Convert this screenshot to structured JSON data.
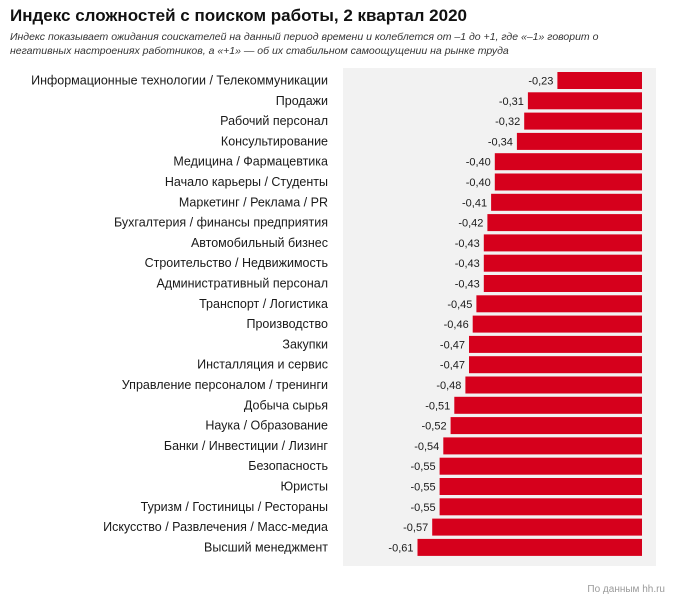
{
  "header": {
    "title": "Индекс сложностей с поиском работы, 2 квартал 2020",
    "subtitle": "Индекс показывает ожидания соискателей на данный период времени и колеблется от –1 до +1, где «–1» говорит о негативных настроениях работников, а «+1» — об их стабильном самоощущении на рынке труда"
  },
  "footer": {
    "source": "По данным hh.ru"
  },
  "colors": {
    "bar": "#d6001c",
    "panel": "#f2f2f2",
    "text": "#1a1a1a"
  },
  "chart_data": {
    "type": "bar",
    "orientation": "horizontal",
    "categories": [
      "Информационные технологии / Телекоммуникации",
      "Продажи",
      "Рабочий персонал",
      "Консультирование",
      "Медицина / Фармацевтика",
      "Начало карьеры / Студенты",
      "Маркетинг / Реклама / PR",
      "Бухгалтерия / финансы предприятия",
      "Автомобильный бизнес",
      "Строительство / Недвижимость",
      "Административный персонал",
      "Транспорт / Логистика",
      "Производство",
      "Закупки",
      "Инсталляция и сервис",
      "Управление персоналом / тренинги",
      "Добыча сырья",
      "Наука / Образование",
      "Банки / Инвестиции / Лизинг",
      "Безопасность",
      "Юристы",
      "Туризм / Гостиницы / Рестораны",
      "Искусство / Развлечения / Масс-медиа",
      "Высший менеджмент"
    ],
    "values": [
      -0.23,
      -0.31,
      -0.32,
      -0.34,
      -0.4,
      -0.4,
      -0.41,
      -0.42,
      -0.43,
      -0.43,
      -0.43,
      -0.45,
      -0.46,
      -0.47,
      -0.47,
      -0.48,
      -0.51,
      -0.52,
      -0.54,
      -0.55,
      -0.55,
      -0.55,
      -0.57,
      -0.61
    ],
    "value_labels": [
      "-0,23",
      "-0,31",
      "-0,32",
      "-0,34",
      "-0,40",
      "-0,40",
      "-0,41",
      "-0,42",
      "-0,43",
      "-0,43",
      "-0,43",
      "-0,45",
      "-0,46",
      "-0,47",
      "-0,47",
      "-0,48",
      "-0,51",
      "-0,52",
      "-0,54",
      "-0,55",
      "-0,55",
      "-0,55",
      "-0,57",
      "-0,61"
    ],
    "xlim": [
      -0.8,
      0
    ],
    "grid": false,
    "legend": "none"
  }
}
